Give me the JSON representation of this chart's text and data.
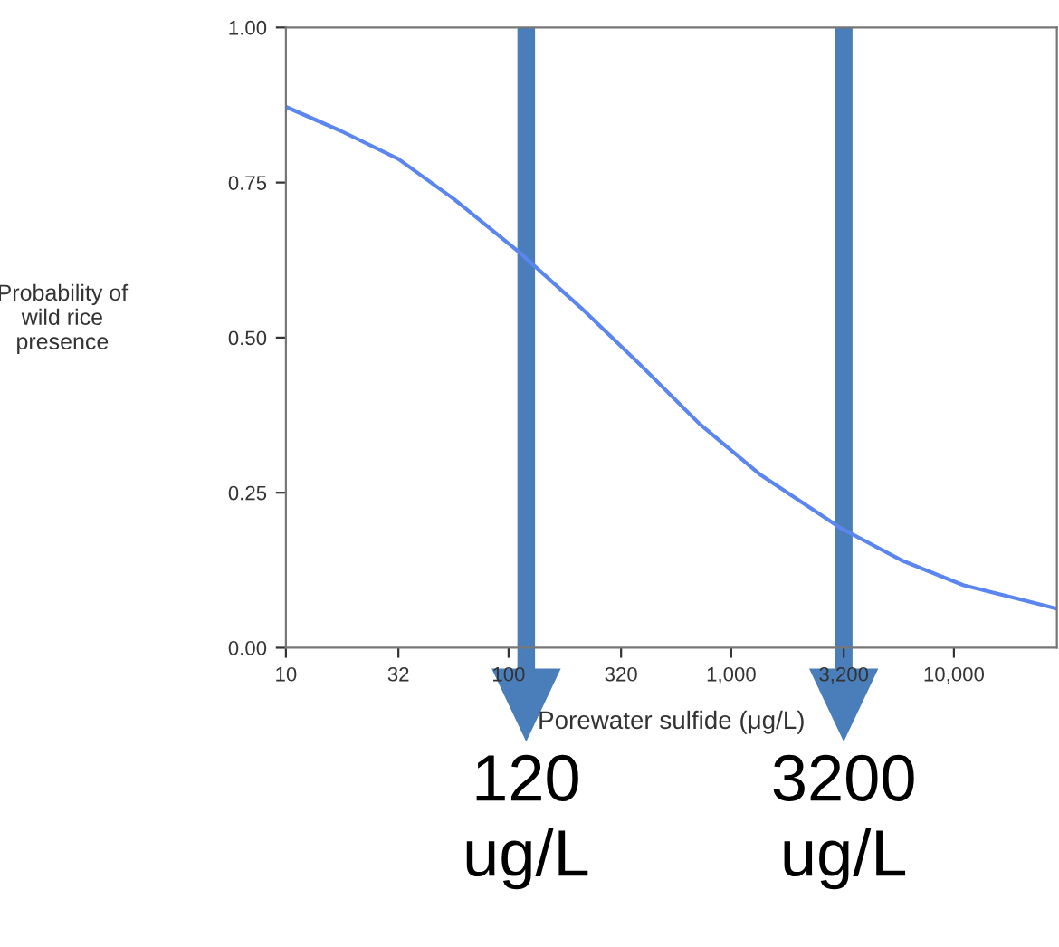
{
  "chart_data": {
    "type": "line",
    "ylabel": "Probability of\nwild rice\npresence",
    "xlabel": "Porewater sulfide (μg/L)",
    "log": "x",
    "x": [
      10,
      17.7,
      32,
      57,
      113,
      210,
      386,
      720,
      1350,
      3100,
      5900,
      11000,
      20400,
      29000
    ],
    "series": [
      {
        "color": "#5b86f0",
        "values": [
          0.872,
          0.833,
          0.788,
          0.723,
          0.636,
          0.549,
          0.458,
          0.361,
          0.279,
          0.193,
          0.14,
          0.101,
          0.077,
          0.063
        ]
      }
    ],
    "xlim": [
      10,
      29000
    ],
    "xticks": [
      10,
      32,
      100,
      320,
      {
        "value": 1000,
        "label": "1,000"
      },
      {
        "value": 3200,
        "label": "3,200"
      },
      {
        "value": 10000,
        "label": "10,000"
      }
    ],
    "ylim": [
      0,
      1
    ],
    "yticks": [
      {
        "value": 0,
        "label": "0.00"
      },
      {
        "value": 0.25,
        "label": "0.25"
      },
      {
        "value": 0.5,
        "label": "0.50"
      },
      {
        "value": 0.75,
        "label": "0.75"
      },
      {
        "value": 1,
        "label": "1.00"
      }
    ],
    "grid": false,
    "legend": false,
    "ref_lines": [
      {
        "axis": "x",
        "value": 120,
        "label": "120\nug/L",
        "color": "#4a7ebb"
      },
      {
        "axis": "x",
        "value": 3200,
        "label": "3200\nug/L",
        "color": "#4a7ebb"
      }
    ]
  }
}
